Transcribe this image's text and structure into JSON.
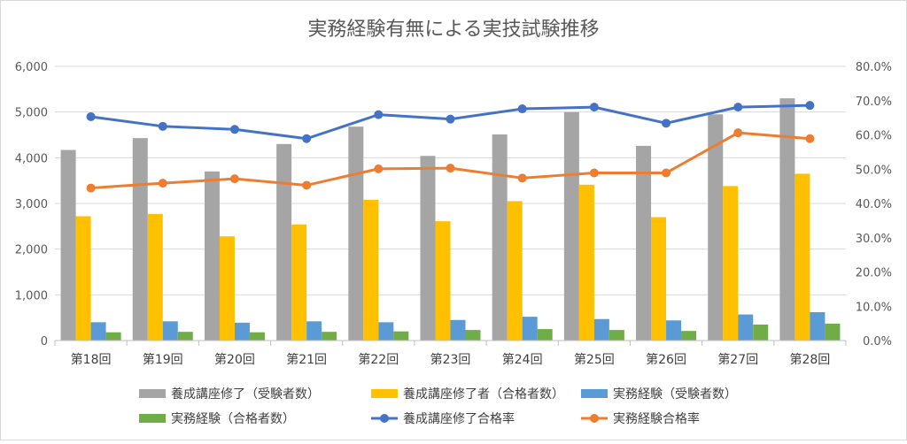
{
  "chart_data": {
    "type": "bar",
    "title": "実務経験有無による実技試験推移",
    "categories": [
      "第18回",
      "第19回",
      "第20回",
      "第21回",
      "第22回",
      "第23回",
      "第24回",
      "第25回",
      "第26回",
      "第27回",
      "第28回"
    ],
    "ylim_left": [
      0,
      6000
    ],
    "yticks_left": [
      "0",
      "1,000",
      "2,000",
      "3,000",
      "4,000",
      "5,000",
      "6,000"
    ],
    "ylim_right": [
      0,
      80
    ],
    "yticks_right": [
      "0.0%",
      "10.0%",
      "20.0%",
      "30.0%",
      "40.0%",
      "50.0%",
      "60.0%",
      "70.0%",
      "80.0%"
    ],
    "grid": true,
    "legend_position": "bottom",
    "series": [
      {
        "name": "養成講座修了（受験者数）",
        "type": "bar",
        "axis": "left",
        "color": "#a5a5a5",
        "values": [
          4170,
          4430,
          3700,
          4300,
          4680,
          4040,
          4510,
          5000,
          4260,
          4950,
          5300
        ]
      },
      {
        "name": "養成講座修了者（合格者数）",
        "type": "bar",
        "axis": "left",
        "color": "#ffc000",
        "values": [
          2720,
          2770,
          2280,
          2540,
          3080,
          2610,
          3050,
          3410,
          2700,
          3380,
          3650
        ]
      },
      {
        "name": "実務経験（受験者数）",
        "type": "bar",
        "axis": "left",
        "color": "#5b9bd5",
        "values": [
          400,
          420,
          390,
          420,
          400,
          450,
          520,
          470,
          440,
          570,
          620
        ]
      },
      {
        "name": "実務経験（合格者数）",
        "type": "bar",
        "axis": "left",
        "color": "#70ad47",
        "values": [
          180,
          190,
          180,
          190,
          200,
          230,
          250,
          230,
          210,
          350,
          370
        ]
      },
      {
        "name": "養成講座修了合格率",
        "type": "line",
        "axis": "right",
        "color": "#4472c4",
        "values": [
          65.3,
          62.5,
          61.6,
          58.9,
          65.9,
          64.6,
          67.6,
          68.1,
          63.4,
          68.1,
          68.6
        ]
      },
      {
        "name": "実務経験合格率",
        "type": "line",
        "axis": "right",
        "color": "#ed7d31",
        "values": [
          44.5,
          45.9,
          47.2,
          45.3,
          50.1,
          50.3,
          47.4,
          48.9,
          48.9,
          60.6,
          58.9
        ]
      }
    ]
  }
}
